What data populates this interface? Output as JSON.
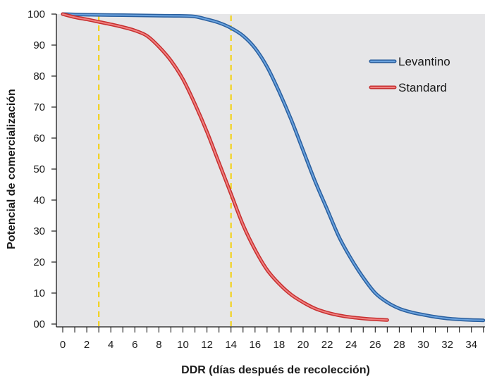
{
  "chart_data": {
    "type": "line",
    "xlabel": "DDR (días después de recolección)",
    "ylabel": "Potencial de comercialización",
    "xlim": [
      0,
      35
    ],
    "ylim": [
      0,
      100
    ],
    "x_ticks": [
      0,
      2,
      4,
      6,
      8,
      10,
      12,
      14,
      16,
      18,
      20,
      22,
      24,
      26,
      28,
      30,
      32,
      34
    ],
    "x_tick_labels": [
      "0",
      "2",
      "4",
      "6",
      "8",
      "10",
      "12",
      "14",
      "16",
      "18",
      "20",
      "22",
      "24",
      "26",
      "28",
      "30",
      "32",
      "34"
    ],
    "y_ticks": [
      0,
      10,
      20,
      30,
      40,
      50,
      60,
      70,
      80,
      90,
      100
    ],
    "y_tick_labels": [
      "00",
      "10",
      "20",
      "30",
      "40",
      "50",
      "60",
      "70",
      "80",
      "90",
      "100"
    ],
    "grid": false,
    "minor_x_ticks": true,
    "legend_position": "top-right",
    "reference_lines_x": [
      3,
      14
    ],
    "series": [
      {
        "name": "Levantino",
        "color": "#4a86c8",
        "points": [
          [
            0,
            100
          ],
          [
            2,
            99.8
          ],
          [
            4,
            99.7
          ],
          [
            6,
            99.6
          ],
          [
            8,
            99.5
          ],
          [
            10,
            99.4
          ],
          [
            11,
            99.2
          ],
          [
            12,
            98.3
          ],
          [
            13,
            97.2
          ],
          [
            14,
            95.5
          ],
          [
            15,
            93
          ],
          [
            16,
            89
          ],
          [
            17,
            83
          ],
          [
            18,
            75
          ],
          [
            19,
            66
          ],
          [
            20,
            56
          ],
          [
            21,
            46
          ],
          [
            22,
            37
          ],
          [
            23,
            28
          ],
          [
            24,
            21
          ],
          [
            25,
            15
          ],
          [
            26,
            10
          ],
          [
            27,
            7
          ],
          [
            28,
            5
          ],
          [
            29,
            3.8
          ],
          [
            30,
            3
          ],
          [
            31,
            2.3
          ],
          [
            32,
            1.8
          ],
          [
            33,
            1.5
          ],
          [
            34,
            1.3
          ],
          [
            35,
            1.2
          ]
        ]
      },
      {
        "name": "Standard",
        "color": "#e84a4a",
        "points": [
          [
            0,
            100
          ],
          [
            1,
            99
          ],
          [
            2,
            98.3
          ],
          [
            3,
            97.5
          ],
          [
            4,
            96.7
          ],
          [
            5,
            95.8
          ],
          [
            6,
            94.7
          ],
          [
            7,
            93
          ],
          [
            8,
            89.5
          ],
          [
            9,
            85
          ],
          [
            10,
            79
          ],
          [
            11,
            71
          ],
          [
            12,
            62
          ],
          [
            13,
            52
          ],
          [
            14,
            42
          ],
          [
            15,
            32
          ],
          [
            16,
            24
          ],
          [
            17,
            17.5
          ],
          [
            18,
            13
          ],
          [
            19,
            9.5
          ],
          [
            20,
            7
          ],
          [
            21,
            5
          ],
          [
            22,
            3.7
          ],
          [
            23,
            2.8
          ],
          [
            24,
            2.2
          ],
          [
            25,
            1.8
          ],
          [
            26,
            1.5
          ],
          [
            27,
            1.3
          ]
        ]
      }
    ]
  }
}
